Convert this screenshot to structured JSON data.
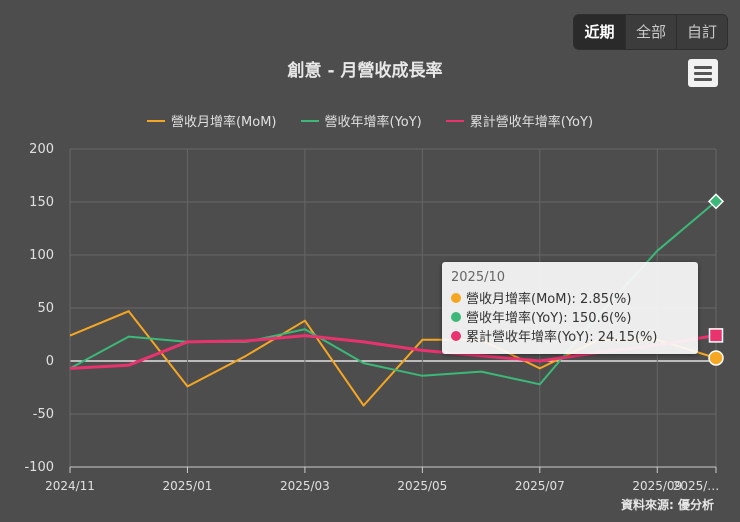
{
  "range_buttons": [
    "近期",
    "全部",
    "自訂"
  ],
  "title": "創意 - 月營收成長率",
  "source": "資料來源: 優分析",
  "menu_icon": "hamburger-icon",
  "tooltip": {
    "date": "2025/10",
    "rows": [
      {
        "label": "營收月增率(MoM): 2.85(%)",
        "color": "#f5a623"
      },
      {
        "label": "營收年增率(YoY): 150.6(%)",
        "color": "#3cb878"
      },
      {
        "label": "累計營收年增率(YoY): 24.15(%)",
        "color": "#e8336f"
      }
    ]
  },
  "chart_data": {
    "type": "line",
    "x": [
      "2024/11",
      "2024/12",
      "2025/01",
      "2025/02",
      "2025/03",
      "2025/04",
      "2025/05",
      "2025/06",
      "2025/07",
      "2025/08",
      "2025/09",
      "2025/10"
    ],
    "x_tick_labels": [
      "2024/11",
      "2025/01",
      "2025/03",
      "2025/05",
      "2025/07",
      "2025/09",
      "2025/…"
    ],
    "y_ticks": [
      200,
      150,
      100,
      50,
      0,
      -50,
      -100
    ],
    "ylim": [
      -100,
      200
    ],
    "grid": true,
    "legend_position": "top",
    "series": [
      {
        "name": "營收月增率(MoM)",
        "color": "#f5a623",
        "values": [
          24,
          47,
          -24,
          5,
          38,
          -42,
          20,
          20,
          -7,
          20,
          20,
          2.85
        ]
      },
      {
        "name": "營收年增率(YoY)",
        "color": "#3cb878",
        "values": [
          -7,
          23,
          18,
          18,
          30,
          -2,
          -14,
          -10,
          -22,
          43,
          104,
          150.6
        ]
      },
      {
        "name": "累計營收年增率(YoY)",
        "color": "#e8336f",
        "values": [
          -7,
          -4,
          18,
          19,
          24,
          18,
          10,
          5,
          0,
          8,
          15,
          24.15
        ]
      }
    ]
  }
}
